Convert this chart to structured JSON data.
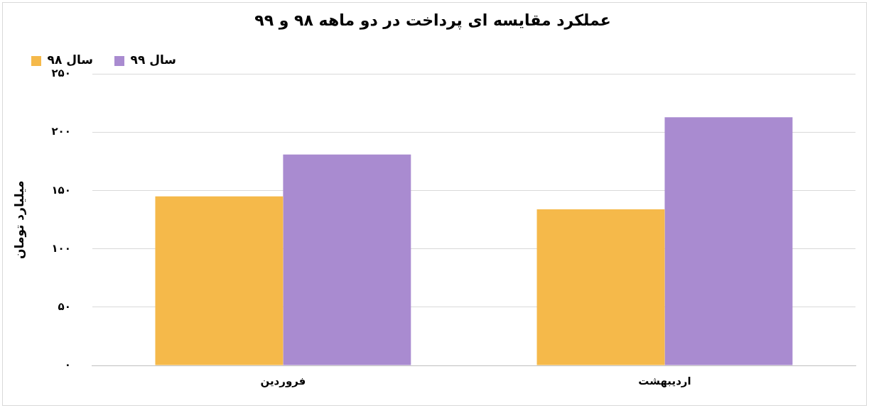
{
  "chart_data": {
    "type": "bar",
    "title": "عملکرد مقایسه ای پرداخت در دو ماهه ۹۸ و ۹۹",
    "ylabel": "میلیارد تومان",
    "categories": [
      "فروردین",
      "اردیبهشت"
    ],
    "series": [
      {
        "name": "سال ۹۸",
        "color": "#f5b94a",
        "values": [
          145,
          134
        ]
      },
      {
        "name": "سال ۹۹",
        "color": "#a98bd0",
        "values": [
          181,
          213
        ]
      }
    ],
    "ylim": [
      0,
      250
    ],
    "yticks": [
      {
        "value": 0,
        "label": "۰"
      },
      {
        "value": 50,
        "label": "۵۰"
      },
      {
        "value": 100,
        "label": "۱۰۰"
      },
      {
        "value": 150,
        "label": "۱۵۰"
      },
      {
        "value": 200,
        "label": "۲۰۰"
      },
      {
        "value": 250,
        "label": "۲۵۰"
      }
    ],
    "grid": "y",
    "legend": "top left"
  }
}
